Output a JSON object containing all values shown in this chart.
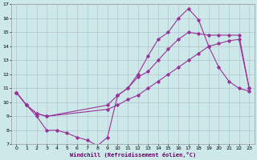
{
  "xlabel": "Windchill (Refroidissement éolien,°C)",
  "xlim": [
    -0.5,
    23.5
  ],
  "ylim": [
    7,
    17
  ],
  "xticks": [
    0,
    1,
    2,
    3,
    4,
    5,
    6,
    7,
    8,
    9,
    10,
    11,
    12,
    13,
    14,
    15,
    16,
    17,
    18,
    19,
    20,
    21,
    22,
    23
  ],
  "yticks": [
    7,
    8,
    9,
    10,
    11,
    12,
    13,
    14,
    15,
    16,
    17
  ],
  "bg_color": "#cce8e8",
  "grid_color": "#b0b8cc",
  "line_color": "#993399",
  "line1_x": [
    0,
    1,
    2,
    3,
    4,
    5,
    6,
    7,
    8,
    9,
    10,
    11,
    12,
    13,
    14,
    15,
    16,
    17,
    18,
    19,
    20,
    21,
    22,
    23
  ],
  "line1_y": [
    10.7,
    9.8,
    9.0,
    8.0,
    8.0,
    7.8,
    7.5,
    7.3,
    6.9,
    7.5,
    10.5,
    11.0,
    12.0,
    13.3,
    14.5,
    15.0,
    16.0,
    16.7,
    15.9,
    14.0,
    12.5,
    11.5,
    11.0,
    10.8
  ],
  "line2_x": [
    0,
    1,
    2,
    3,
    9,
    10,
    11,
    12,
    13,
    14,
    15,
    16,
    17,
    18,
    19,
    20,
    21,
    22,
    23
  ],
  "line2_y": [
    10.7,
    9.8,
    9.2,
    9.0,
    9.8,
    10.5,
    11.0,
    11.8,
    12.2,
    13.0,
    13.8,
    14.5,
    15.0,
    14.9,
    14.8,
    14.8,
    14.8,
    14.8,
    11.0
  ],
  "line3_x": [
    0,
    1,
    2,
    3,
    9,
    10,
    11,
    12,
    13,
    14,
    15,
    16,
    17,
    18,
    19,
    20,
    21,
    22,
    23
  ],
  "line3_y": [
    10.7,
    9.8,
    9.2,
    9.0,
    9.5,
    9.8,
    10.2,
    10.5,
    11.0,
    11.5,
    12.0,
    12.5,
    13.0,
    13.5,
    14.0,
    14.2,
    14.4,
    14.5,
    11.0
  ]
}
